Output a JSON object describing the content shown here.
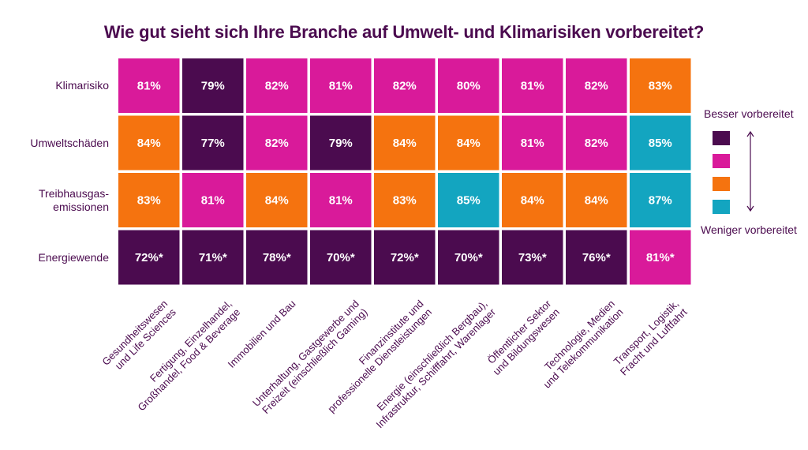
{
  "chart_data": {
    "type": "heatmap",
    "title": "Wie gut sieht sich Ihre Branche auf Umwelt- und Klimarisiken vorbereitet?",
    "rows": [
      "Klimarisiko",
      "Umweltschäden",
      "Treibhausgas-\nemissionen",
      "Energiewende"
    ],
    "columns": [
      "Gesundheitswesen\nund Life Sciences",
      "Fertigung, Einzelhandel,\nGroßhandel, Food & Beverage",
      "Immobilien und Bau",
      "Unterhaltung, Gastgewerbe und\nFreizeit (einschließlich Gaming)",
      "Finanzinstitute und\nprofessionelle Dienstleistungen",
      "Energie (einschließlich Bergbau),\nInfrastruktur, Schifffahrt, Warenlager",
      "Öffentlicher Sektor\nund Bildungswesen",
      "Technologie, Medien\nund Telekommunikation",
      "Transport, Logistik,\nFracht und Luftfahrt"
    ],
    "values": [
      [
        81,
        79,
        82,
        81,
        82,
        80,
        81,
        82,
        83
      ],
      [
        84,
        77,
        82,
        79,
        84,
        84,
        81,
        82,
        85
      ],
      [
        83,
        81,
        84,
        81,
        83,
        85,
        84,
        84,
        87
      ],
      [
        72,
        71,
        78,
        70,
        72,
        70,
        73,
        76,
        81
      ]
    ],
    "labels": [
      [
        "81%",
        "79%",
        "82%",
        "81%",
        "82%",
        "80%",
        "81%",
        "82%",
        "83%"
      ],
      [
        "84%",
        "77%",
        "82%",
        "79%",
        "84%",
        "84%",
        "81%",
        "82%",
        "85%"
      ],
      [
        "83%",
        "81%",
        "84%",
        "81%",
        "83%",
        "85%",
        "84%",
        "84%",
        "87%"
      ],
      [
        "72%*",
        "71%*",
        "78%*",
        "70%*",
        "72%*",
        "70%*",
        "73%*",
        "76%*",
        "81%*"
      ]
    ],
    "categories": [
      [
        1,
        0,
        1,
        1,
        1,
        1,
        1,
        1,
        2
      ],
      [
        2,
        0,
        1,
        0,
        2,
        2,
        1,
        1,
        3
      ],
      [
        2,
        1,
        2,
        1,
        2,
        3,
        2,
        2,
        3
      ],
      [
        0,
        0,
        0,
        0,
        0,
        0,
        0,
        0,
        1
      ]
    ],
    "colors": [
      "#4b0b4f",
      "#d91a9a",
      "#f5730f",
      "#13a5c0"
    ],
    "legend": {
      "top_label": "Besser vorbereitet",
      "bottom_label": "Weniger vorbereitet",
      "placement": "right"
    }
  }
}
